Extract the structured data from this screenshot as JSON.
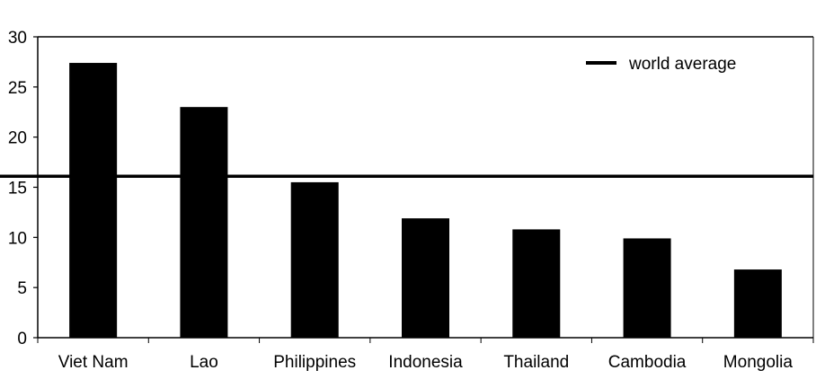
{
  "chart_data": {
    "type": "bar",
    "title": "",
    "xlabel": "",
    "ylabel": "",
    "categories": [
      "Viet Nam",
      "Lao",
      "Philippines",
      "Indonesia",
      "Thailand",
      "Cambodia",
      "Mongolia"
    ],
    "values": [
      27.4,
      23.0,
      15.5,
      11.9,
      10.8,
      9.9,
      6.8
    ],
    "ylim": [
      0,
      30
    ],
    "yticks": [
      0,
      5,
      10,
      15,
      20,
      25,
      30
    ],
    "reference_line": {
      "label": "world average",
      "value": 16.1
    },
    "legend": {
      "position": "top-right",
      "entries": [
        "world average"
      ]
    },
    "grid": false,
    "colors": {
      "bar": "#000000",
      "line": "#000000",
      "axis": "#000000"
    }
  }
}
